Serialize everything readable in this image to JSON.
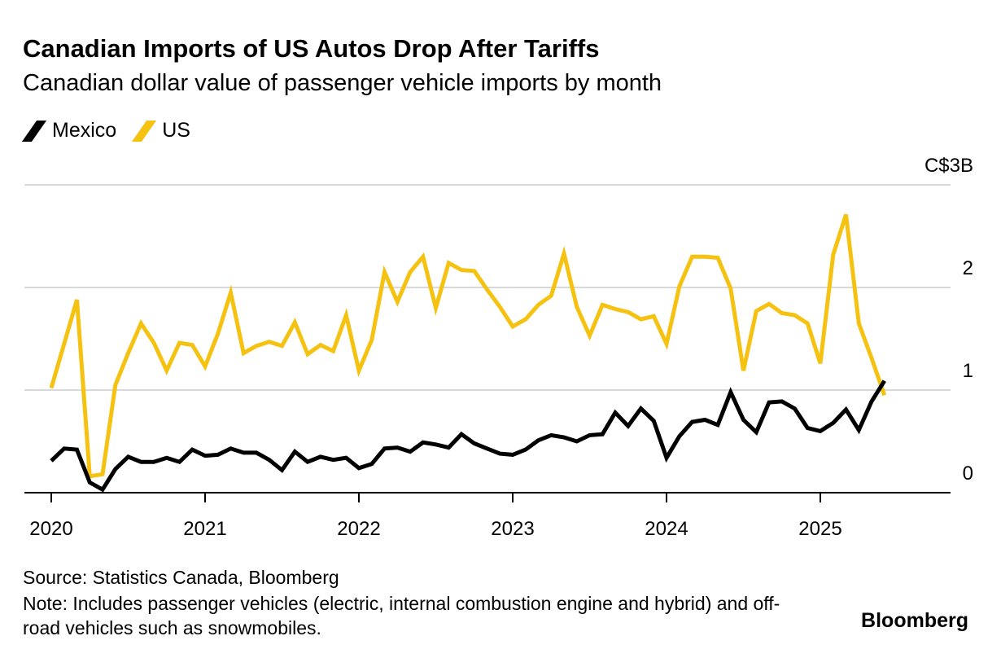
{
  "header": {
    "title": "Canadian Imports of US Autos Drop After Tariffs",
    "subtitle": "Canadian dollar value of passenger vehicle imports by month"
  },
  "footer": {
    "source": "Source: Statistics Canada, Bloomberg",
    "note": "Note: Includes passenger vehicles (electric, internal combustion engine and hybrid) and off-road vehicles such as snowmobiles.",
    "brand": "Bloomberg"
  },
  "colors": {
    "mexico": "#000000",
    "us": "#f5c211",
    "grid": "#d9d9d9",
    "axis": "#000000"
  },
  "chart_data": {
    "type": "line",
    "title": "Canadian Imports of US Autos Drop After Tariffs",
    "subtitle": "Canadian dollar value of passenger vehicle imports by month",
    "xlabel": "",
    "ylabel": "",
    "x_start": "2020-01",
    "x_ticks": [
      "2020",
      "2021",
      "2022",
      "2023",
      "2024",
      "2025"
    ],
    "y_ticks": [
      {
        "value": 0,
        "label": "0"
      },
      {
        "value": 1,
        "label": "1"
      },
      {
        "value": 2,
        "label": "2"
      },
      {
        "value": 3,
        "label": "C$3B"
      }
    ],
    "ylim": [
      0,
      3
    ],
    "grid": true,
    "legend": "top-left",
    "series": [
      {
        "name": "Mexico",
        "color": "#000000",
        "values": [
          0.31,
          0.43,
          0.42,
          0.1,
          0.03,
          0.23,
          0.35,
          0.3,
          0.3,
          0.34,
          0.3,
          0.42,
          0.36,
          0.37,
          0.43,
          0.39,
          0.39,
          0.32,
          0.22,
          0.4,
          0.3,
          0.35,
          0.32,
          0.34,
          0.24,
          0.28,
          0.43,
          0.44,
          0.4,
          0.49,
          0.47,
          0.44,
          0.57,
          0.48,
          0.43,
          0.38,
          0.37,
          0.42,
          0.51,
          0.56,
          0.54,
          0.5,
          0.56,
          0.57,
          0.78,
          0.65,
          0.82,
          0.7,
          0.34,
          0.55,
          0.69,
          0.71,
          0.66,
          0.98,
          0.71,
          0.59,
          0.88,
          0.89,
          0.82,
          0.63,
          0.6,
          0.68,
          0.81,
          0.61,
          0.89,
          1.09
        ]
      },
      {
        "name": "US",
        "color": "#f5c211",
        "values": [
          1.02,
          1.45,
          1.88,
          0.16,
          0.18,
          1.05,
          1.36,
          1.65,
          1.46,
          1.19,
          1.46,
          1.44,
          1.23,
          1.55,
          1.95,
          1.36,
          1.43,
          1.47,
          1.43,
          1.66,
          1.35,
          1.44,
          1.38,
          1.73,
          1.19,
          1.49,
          2.15,
          1.86,
          2.15,
          2.3,
          1.8,
          2.24,
          2.17,
          2.16,
          1.98,
          1.81,
          1.62,
          1.69,
          1.83,
          1.92,
          2.33,
          1.81,
          1.53,
          1.83,
          1.79,
          1.76,
          1.69,
          1.72,
          1.45,
          2.01,
          2.3,
          2.3,
          2.29,
          1.99,
          1.19,
          1.77,
          1.84,
          1.75,
          1.73,
          1.65,
          1.26,
          2.32,
          2.71,
          1.65,
          1.31,
          0.95
        ]
      }
    ]
  }
}
